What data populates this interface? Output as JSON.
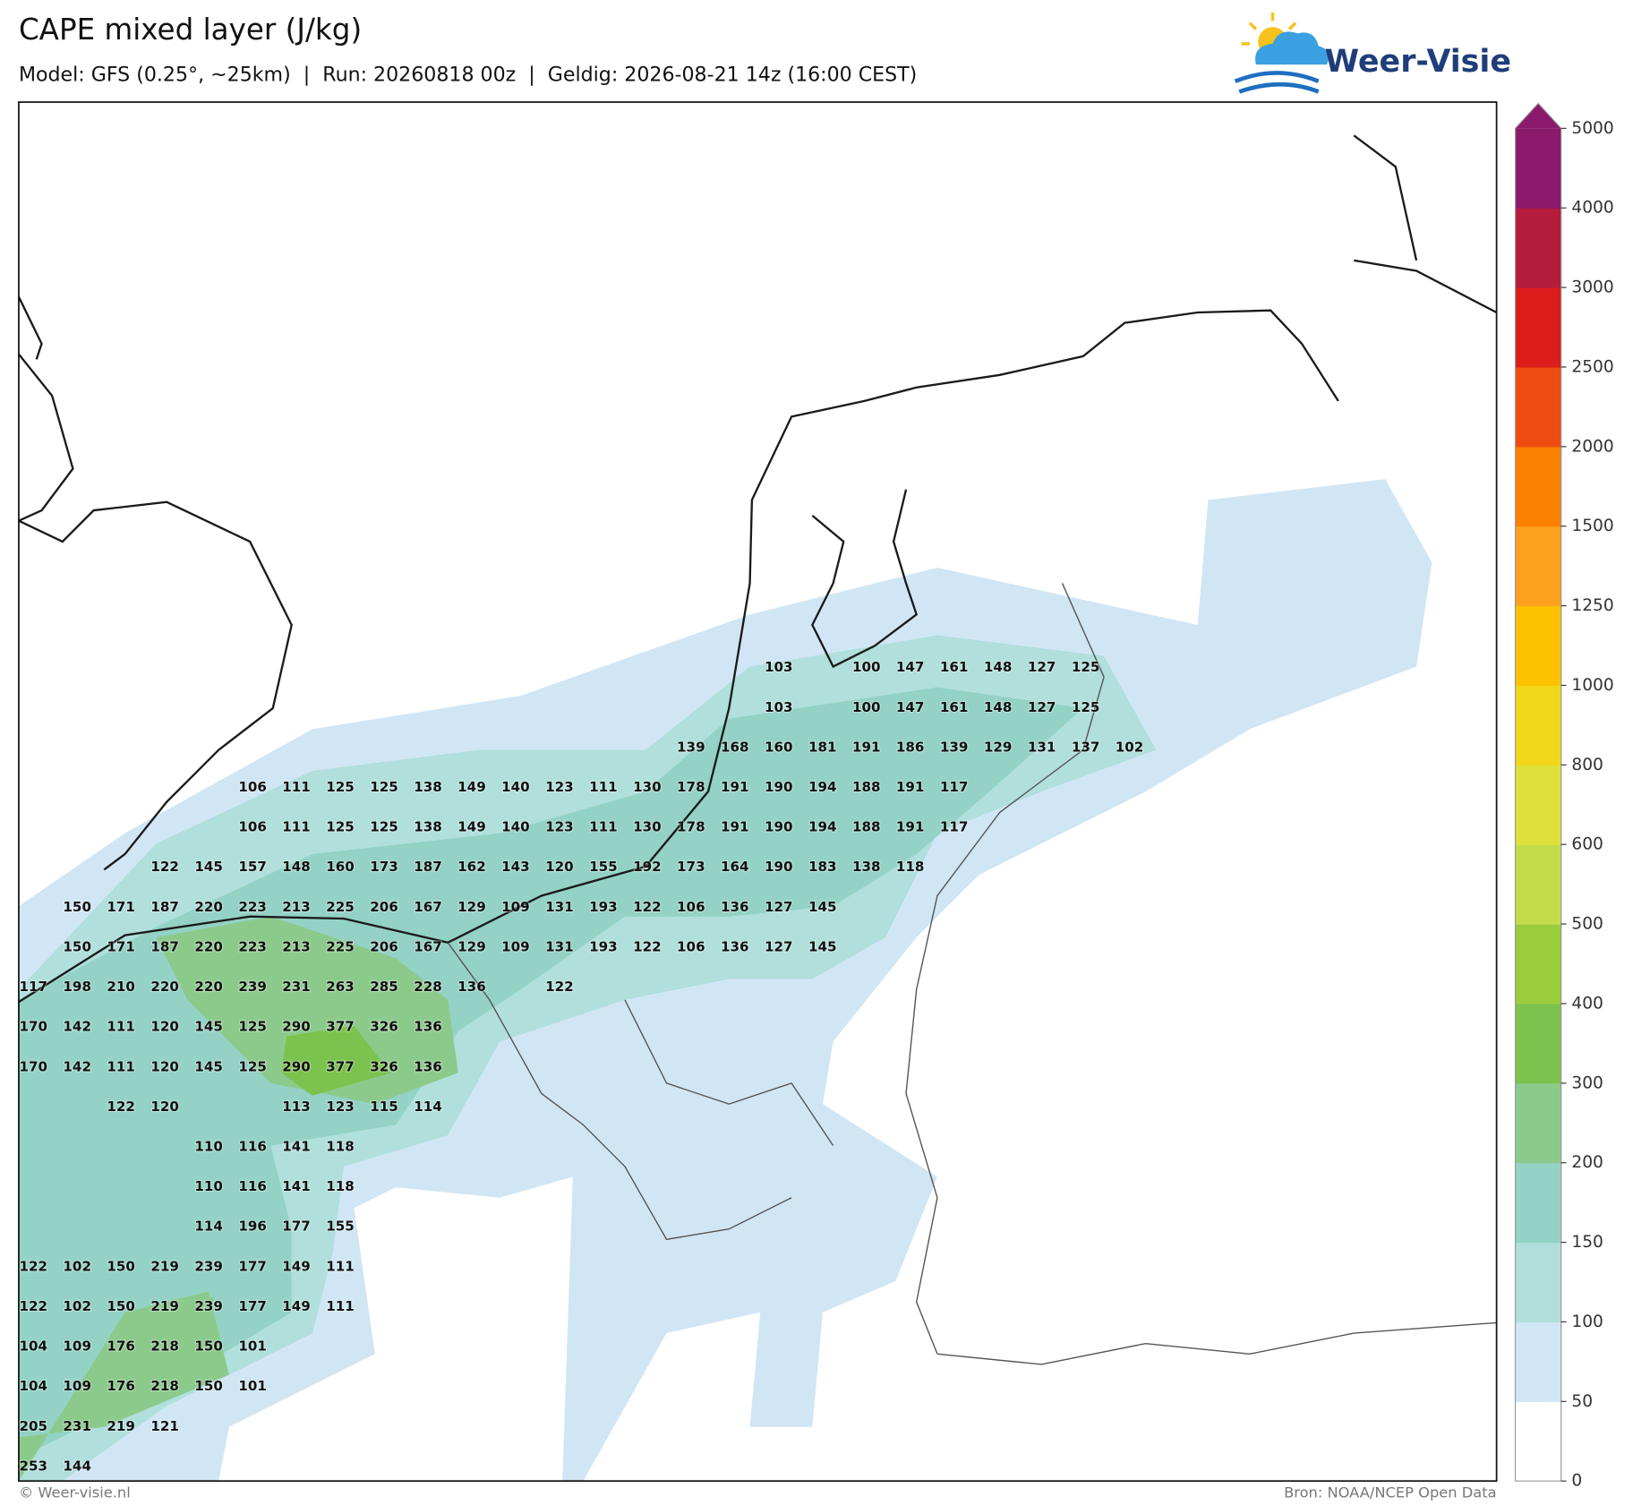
{
  "header": {
    "title": "CAPE mixed layer (J/kg)",
    "subtitle": "Model: GFS (0.25°, ~25km)  |  Run: 20260818 00z  |  Geldig: 2026-08-21 14z (16:00 CEST)"
  },
  "logo": {
    "text": "Weer-Visie"
  },
  "map": {
    "value_labels": [
      [
        null,
        null,
        null,
        null,
        null,
        null,
        null,
        null,
        null,
        null,
        null,
        null,
        null,
        null,
        null,
        null,
        null,
        103,
        null,
        100,
        147,
        161,
        148,
        127,
        125
      ],
      [
        null,
        null,
        null,
        null,
        null,
        null,
        null,
        null,
        null,
        null,
        null,
        null,
        null,
        null,
        null,
        null,
        null,
        103,
        null,
        100,
        147,
        161,
        148,
        127,
        125
      ],
      [
        null,
        null,
        null,
        null,
        null,
        null,
        null,
        null,
        null,
        null,
        null,
        null,
        null,
        null,
        null,
        139,
        168,
        160,
        181,
        191,
        186,
        139,
        129,
        131,
        137,
        102
      ],
      [
        null,
        null,
        null,
        null,
        null,
        106,
        111,
        125,
        125,
        138,
        149,
        140,
        123,
        111,
        130,
        178,
        191,
        190,
        194,
        188,
        191,
        117
      ],
      [
        null,
        null,
        null,
        null,
        null,
        106,
        111,
        125,
        125,
        138,
        149,
        140,
        123,
        111,
        130,
        178,
        191,
        190,
        194,
        188,
        191,
        117
      ],
      [
        null,
        null,
        null,
        122,
        145,
        157,
        148,
        160,
        173,
        187,
        162,
        143,
        120,
        155,
        192,
        173,
        164,
        190,
        183,
        138,
        118
      ],
      [
        null,
        150,
        171,
        187,
        220,
        223,
        213,
        225,
        206,
        167,
        129,
        109,
        131,
        193,
        122,
        106,
        136,
        127,
        145
      ],
      [
        null,
        150,
        171,
        187,
        220,
        223,
        213,
        225,
        206,
        167,
        129,
        109,
        131,
        193,
        122,
        106,
        136,
        127,
        145
      ],
      [
        117,
        198,
        210,
        220,
        220,
        239,
        231,
        263,
        285,
        228,
        136,
        null,
        122
      ],
      [
        170,
        142,
        111,
        120,
        145,
        125,
        290,
        377,
        326,
        136
      ],
      [
        170,
        142,
        111,
        120,
        145,
        125,
        290,
        377,
        326,
        136
      ],
      [
        null,
        null,
        122,
        120,
        null,
        null,
        113,
        123,
        115,
        114
      ],
      [
        null,
        null,
        null,
        null,
        110,
        116,
        141,
        118
      ],
      [
        null,
        null,
        null,
        null,
        110,
        116,
        141,
        118
      ],
      [
        null,
        null,
        null,
        null,
        114,
        196,
        177,
        155
      ],
      [
        122,
        102,
        150,
        219,
        239,
        177,
        149,
        111
      ],
      [
        122,
        102,
        150,
        219,
        239,
        177,
        149,
        111
      ],
      [
        104,
        109,
        176,
        218,
        150,
        101
      ],
      [
        104,
        109,
        176,
        218,
        150,
        101
      ],
      [
        205,
        231,
        219,
        121
      ],
      [
        253,
        144
      ]
    ]
  },
  "colorbar": {
    "levels": [
      0,
      50,
      100,
      150,
      200,
      300,
      400,
      500,
      600,
      800,
      1000,
      1250,
      1500,
      2000,
      2500,
      3000,
      4000,
      5000
    ],
    "colors": [
      "#ffffff",
      "#d0e6f5",
      "#b0dfdc",
      "#93d2c5",
      "#8cca8c",
      "#7cc24e",
      "#9acd3c",
      "#c5dc4a",
      "#dfe13a",
      "#f2d61a",
      "#fcc200",
      "#fca120",
      "#fb8000",
      "#ee4c10",
      "#dd1c1c",
      "#b51c3c",
      "#8c1a6c"
    ]
  },
  "footer": {
    "left": "© Weer-visie.nl",
    "right": "Bron: NOAA/NCEP Open Data"
  }
}
